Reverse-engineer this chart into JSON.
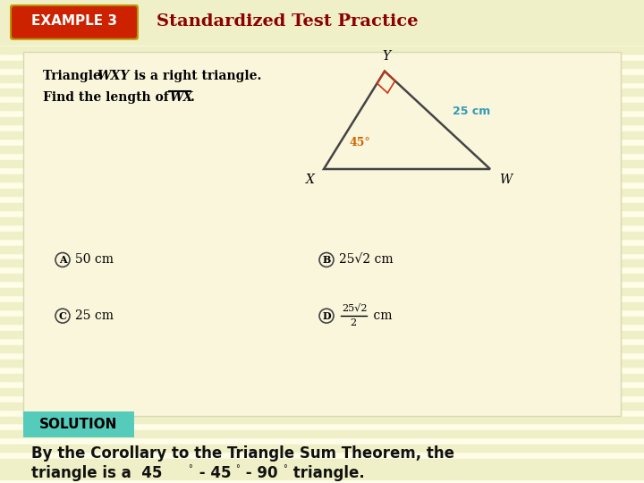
{
  "bg_color": "#fdfde8",
  "stripe_color": "#f0f0c8",
  "header_bg": "#f0f0c8",
  "example_btn_color": "#cc2200",
  "example_btn_border": "#bb9900",
  "example_text": "EXAMPLE 3",
  "header_title": "Standardized Test Practice",
  "header_title_color": "#8b0000",
  "prob_box_bg": "#faf6dc",
  "prob_box_border": "#d8d8b0",
  "triangle_color": "#444444",
  "angle_mark_color": "#cc3311",
  "label_color": "#3399bb",
  "answer_circle_color": "#444444",
  "answer_A": "50 cm",
  "answer_B": "25√2 cm",
  "answer_C": "25 cm",
  "answer_D_num": "25√2",
  "answer_D_den": "2",
  "answer_D_unit": " cm",
  "solution_bg": "#55ccbb",
  "solution_text": "SOLUTION",
  "body_text_color": "#111111",
  "body_line1": "By the Corollary to the Triangle Sum Theorem, the",
  "body_line2_pre": "triangle is a  45",
  "body_line2_mid1": " - 45",
  "body_line2_mid2": " - 90",
  "body_line2_post": " triangle.",
  "footer_bg": "#f0f0c8"
}
